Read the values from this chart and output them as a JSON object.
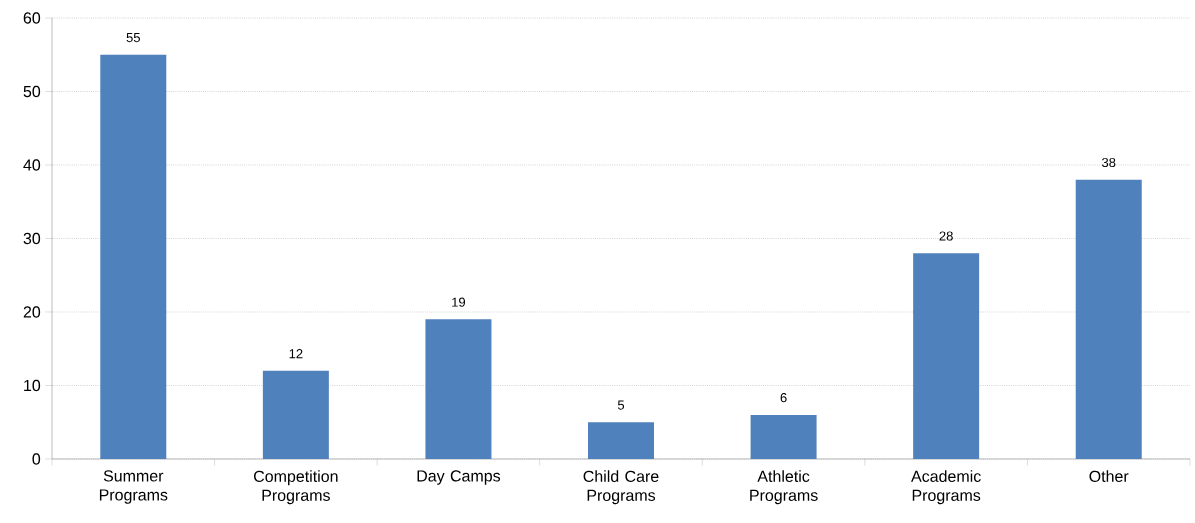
{
  "chart_data": {
    "type": "bar",
    "categories": [
      "Summer Programs",
      "Competition Programs",
      "Day Camps",
      "Child Care Programs",
      "Athletic Programs",
      "Academic Programs",
      "Other"
    ],
    "values": [
      55,
      12,
      19,
      5,
      6,
      28,
      38
    ],
    "color": "#4f81bd",
    "ylim": [
      0,
      60
    ],
    "yticks": [
      0,
      10,
      20,
      30,
      40,
      50,
      60
    ],
    "grid": "y",
    "data_labels": true
  }
}
